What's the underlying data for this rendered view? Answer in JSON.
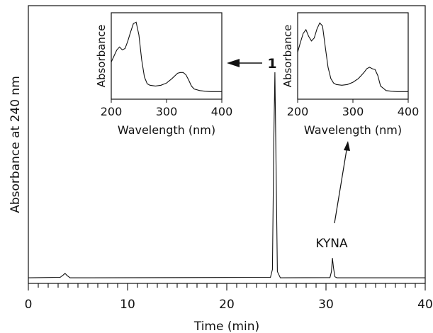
{
  "chart_data": [
    {
      "type": "line",
      "xlabel": "Time (min)",
      "ylabel": "Absorbance at 240 nm",
      "xlim": [
        0,
        40
      ],
      "xticks": [
        0,
        10,
        20,
        30,
        40
      ],
      "x_minor_step": 1,
      "grid": false,
      "series": [
        {
          "x": [
            0,
            3.2,
            3.5,
            3.7,
            3.9,
            4.2,
            24.4,
            24.6,
            24.75,
            24.85,
            24.95,
            25.1,
            25.4,
            30.4,
            30.55,
            30.65,
            30.75,
            30.9,
            31.1,
            40
          ],
          "y": [
            1.0,
            1.2,
            2.3,
            3.1,
            2.1,
            1.0,
            1.2,
            5,
            70,
            100,
            62,
            4,
            1.0,
            1.1,
            4,
            10.5,
            6,
            1.5,
            1.0,
            1.0
          ]
        }
      ],
      "annotations": [
        {
          "label": "1",
          "x": 24.85,
          "y": 100
        },
        {
          "label": "KYNA",
          "x": 30.65,
          "y": 10.5
        }
      ]
    },
    {
      "type": "line",
      "inset_for": "1",
      "xlabel": "Wavelength (nm)",
      "ylabel": "Absorbance",
      "xlim": [
        200,
        400
      ],
      "xticks": [
        200,
        300,
        400
      ],
      "series": [
        {
          "x": [
            200,
            205,
            210,
            215,
            220,
            225,
            230,
            235,
            240,
            245,
            250,
            255,
            260,
            265,
            270,
            280,
            290,
            300,
            310,
            320,
            325,
            330,
            335,
            340,
            345,
            350,
            360,
            370,
            380,
            390,
            400
          ],
          "y": [
            42,
            50,
            58,
            62,
            58,
            60,
            70,
            82,
            93,
            95,
            78,
            45,
            22,
            13,
            11,
            10,
            11,
            14,
            20,
            27,
            28,
            28,
            25,
            18,
            10,
            6,
            4,
            3,
            2.5,
            2.5,
            2.5
          ]
        }
      ]
    },
    {
      "type": "line",
      "inset_for": "KYNA",
      "xlabel": "Wavelength (nm)",
      "ylabel": "Absorbance",
      "xlim": [
        200,
        400
      ],
      "xticks": [
        200,
        300,
        400
      ],
      "series": [
        {
          "x": [
            200,
            205,
            210,
            215,
            220,
            225,
            230,
            235,
            240,
            245,
            250,
            255,
            260,
            265,
            270,
            280,
            290,
            300,
            310,
            320,
            325,
            330,
            335,
            340,
            345,
            350,
            360,
            370,
            380,
            390,
            400
          ],
          "y": [
            55,
            68,
            80,
            85,
            76,
            70,
            74,
            86,
            94,
            90,
            62,
            35,
            20,
            14,
            12,
            11,
            12,
            15,
            20,
            28,
            33,
            35,
            33,
            32,
            24,
            10,
            4,
            3,
            2.5,
            2.5,
            2.5
          ]
        }
      ]
    }
  ]
}
